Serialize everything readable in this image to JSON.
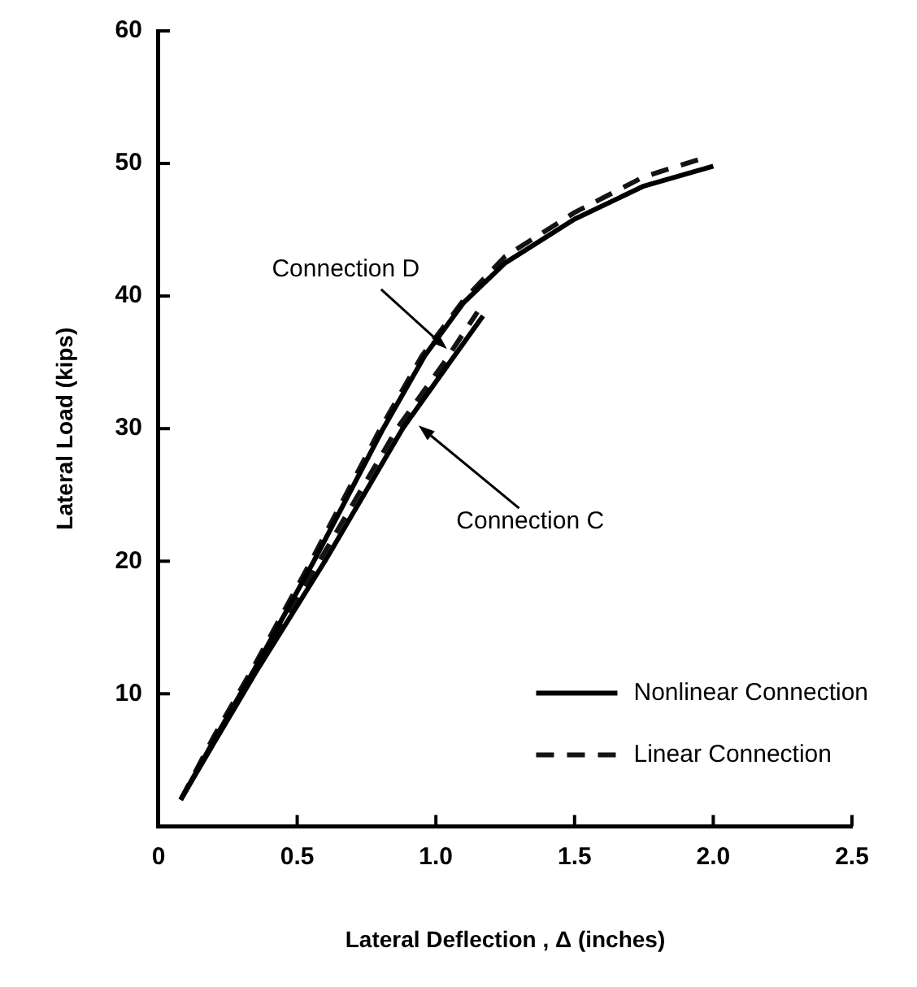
{
  "chart_data": {
    "type": "line",
    "xlabel": "Lateral Deflection , Δ (inches)",
    "ylabel": "Lateral Load (kips)",
    "xlim": [
      0,
      2.5
    ],
    "ylim": [
      0,
      60
    ],
    "xticks": [
      0,
      0.5,
      {
        "value": 1,
        "label": "1.0"
      },
      1.5,
      {
        "value": 2,
        "label": "2.0"
      },
      2.5
    ],
    "yticks": [
      {
        "value": 0,
        "label": null
      },
      10,
      20,
      30,
      40,
      50,
      60
    ],
    "grid": false,
    "legend": "bottom right",
    "marker": "none",
    "series": [
      {
        "name": "Nonlinear Connection",
        "color": "#000000",
        "line_style": "solid",
        "x": [
          0.08,
          0.2,
          0.35,
          0.56,
          0.81,
          0.96,
          1.1,
          1.25,
          1.5,
          1.75,
          2.0,
          null,
          0.08,
          0.2,
          0.35,
          0.6,
          0.88,
          1.05,
          1.17
        ],
        "values": [
          2,
          6.5,
          12,
          20,
          30,
          35.5,
          39.5,
          42.5,
          45.8,
          48.3,
          49.8,
          null,
          2,
          6.3,
          11.6,
          20,
          30,
          35,
          38.5
        ]
      },
      {
        "name": "Linear Connection",
        "color": "#141414",
        "line_style": "dashed",
        "x": [
          0.08,
          0.2,
          0.35,
          0.55,
          0.8,
          0.95,
          1.1,
          1.25,
          1.5,
          1.75,
          1.98,
          null,
          0.08,
          0.2,
          0.35,
          0.58,
          0.86,
          1.03,
          1.15
        ],
        "values": [
          2,
          6.8,
          12.3,
          20,
          30,
          35.5,
          39.7,
          43,
          46.3,
          49,
          50.5,
          null,
          2,
          6.5,
          11.8,
          20,
          30,
          35,
          38.8
        ]
      }
    ],
    "annotations": [
      {
        "text": "Connection D",
        "x": 1.04,
        "y": 36
      },
      "Connection C"
    ]
  }
}
